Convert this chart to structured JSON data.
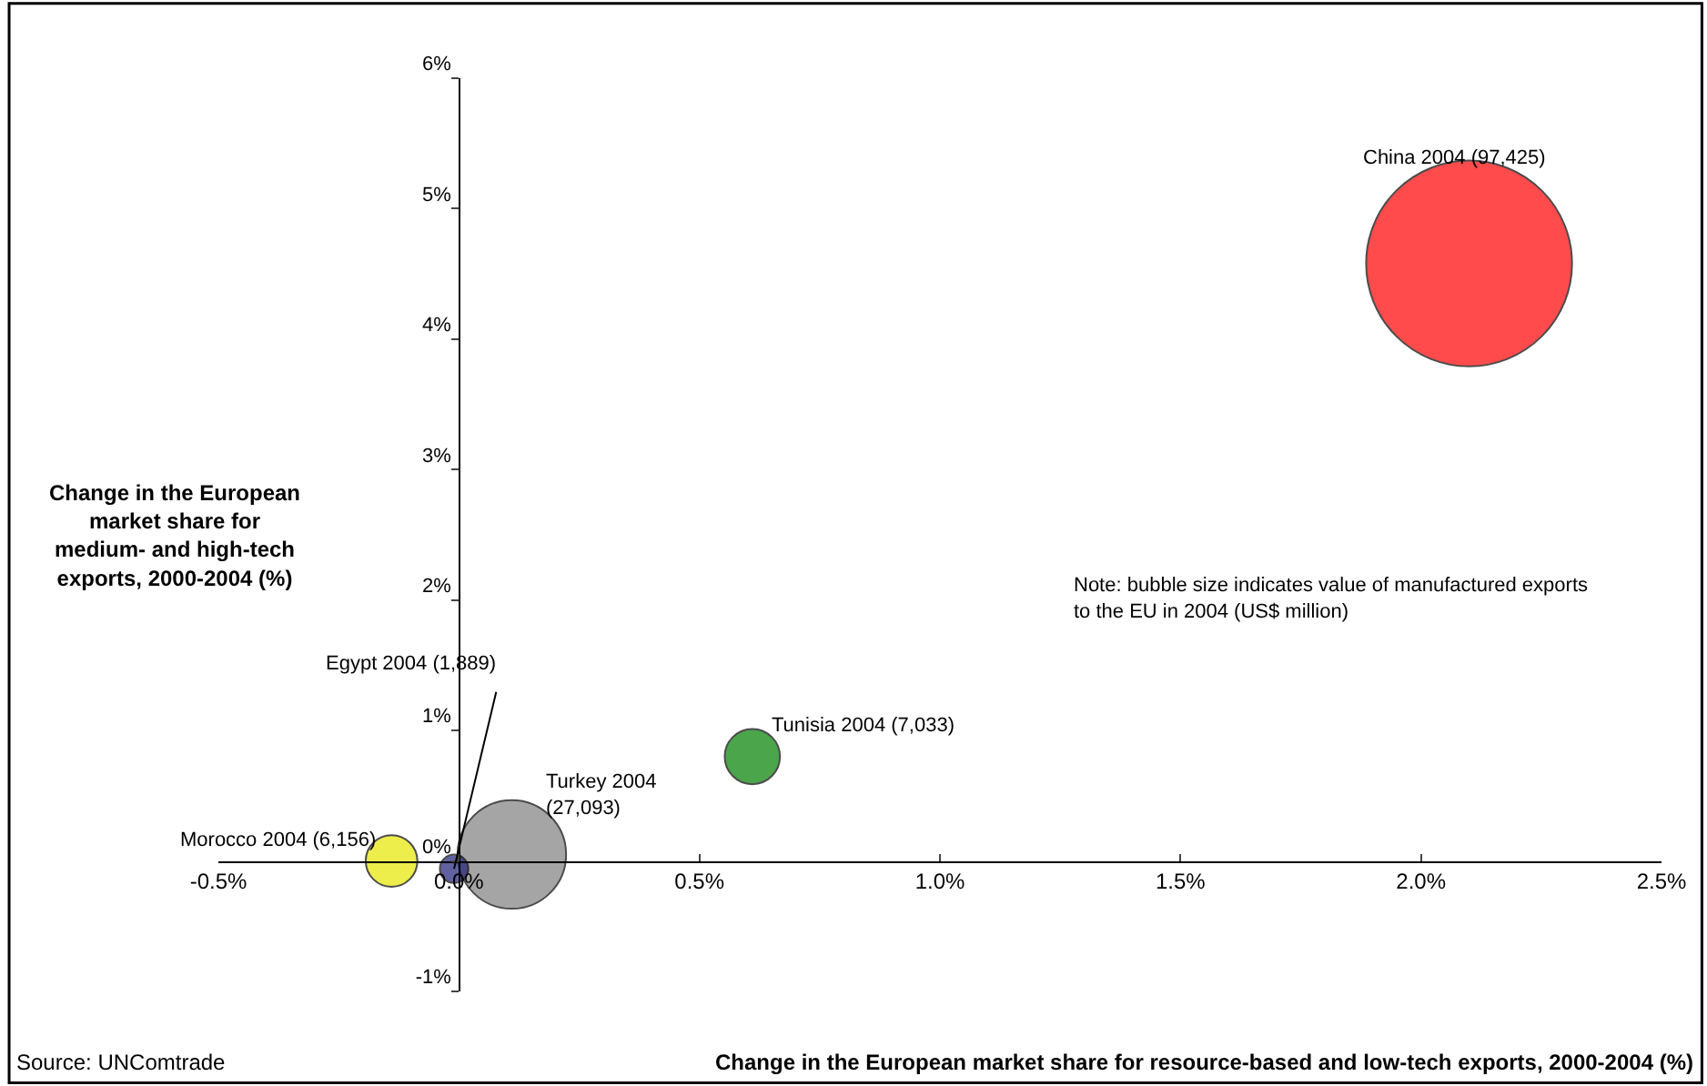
{
  "chart_data": {
    "type": "bubble",
    "xlabel": "Change in the European market share for resource-based and low-tech exports, 2000-2004 (%)",
    "ylabel": "Change in the European market share for medium- and high-tech exports, 2000-2004 (%)",
    "series": [
      {
        "name": "China 2004 (97,425)",
        "color": "#ff0000",
        "x": [
          2.1
        ],
        "values": [
          4.58
        ],
        "sizes": [
          1
        ]
      },
      {
        "name": "Turkey 2004\n(27,093)",
        "color": "#808080",
        "x": [
          0.11
        ],
        "values": [
          0.05
        ],
        "sizes": [
          0.278
        ]
      },
      {
        "name": "Tunisia 2004 (7,033)",
        "color": "#008000",
        "x": [
          0.61
        ],
        "values": [
          0.8
        ],
        "sizes": [
          0.072
        ]
      },
      {
        "name": "Morocco 2004 (6,156)",
        "color": "#e6e600",
        "x": [
          -0.14
        ],
        "values": [
          0.0
        ],
        "sizes": [
          0.063
        ]
      },
      {
        "name": "Egypt 2004 (1,889)",
        "color": "#1f1f7a",
        "x": [
          -0.01
        ],
        "values": [
          -0.06
        ],
        "sizes": [
          0.019
        ]
      }
    ],
    "xlim": [
      -0.5,
      2.5
    ],
    "xticks": [
      {
        "value": -0.5,
        "label": "-0.5%"
      },
      {
        "value": 0,
        "label": "0.0%"
      },
      {
        "value": 0.5,
        "label": "0.5%"
      },
      {
        "value": 1,
        "label": "1.0%"
      },
      {
        "value": 1.5,
        "label": "1.5%"
      },
      {
        "value": 2,
        "label": "2.0%"
      },
      {
        "value": 2.5,
        "label": "2.5%"
      }
    ],
    "ylim": [
      -1,
      6
    ],
    "yticks": [
      {
        "value": -1,
        "label": "-1%"
      },
      {
        "value": 0,
        "label": "0%"
      },
      {
        "value": 1,
        "label": "1%"
      },
      {
        "value": 2,
        "label": "2%"
      },
      {
        "value": 3,
        "label": "3%"
      },
      {
        "value": 4,
        "label": "4%"
      },
      {
        "value": 5,
        "label": "5%"
      },
      {
        "value": 6,
        "label": "6%"
      }
    ],
    "grid": false,
    "legend": false,
    "annotations": [
      "Note: bubble size indicates value of manufactured exports\nto the EU in 2004 (US$ million)",
      "Source: UNComtrade"
    ]
  }
}
